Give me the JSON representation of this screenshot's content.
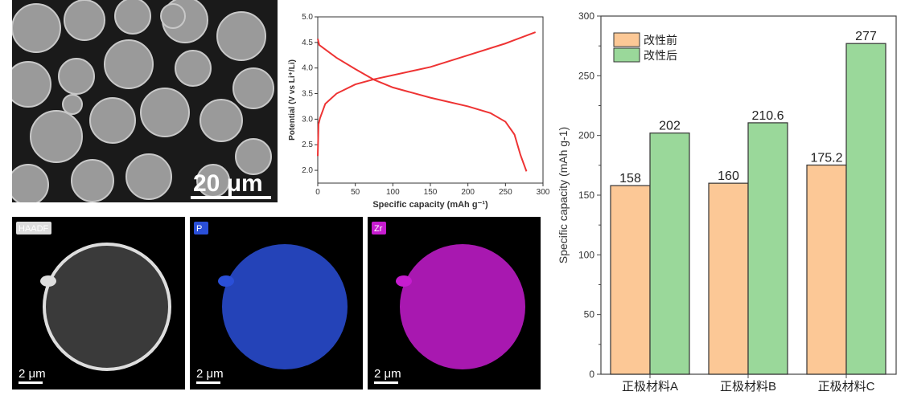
{
  "sem": {
    "scale_label": "20 μm"
  },
  "eds": [
    {
      "label": "HAADF",
      "scale_label": "2 μm",
      "color": "#d8d8d8"
    },
    {
      "label": "P",
      "scale_label": "2 μm",
      "color": "#2a4fd8"
    },
    {
      "label": "Zr",
      "scale_label": "2 μm",
      "color": "#c61ccf"
    }
  ],
  "chart_data": [
    {
      "type": "line",
      "xlabel": "Specific capacity (mAh g⁻¹)",
      "ylabel": "Potential (V vs Li⁺/Li)",
      "xlim": [
        0,
        300
      ],
      "ylim": [
        1.75,
        5.0
      ],
      "xticks": [
        0,
        50,
        100,
        150,
        200,
        250,
        300
      ],
      "yticks": [
        2.0,
        2.5,
        3.0,
        3.5,
        4.0,
        4.5,
        5.0
      ],
      "color": "#ee3333",
      "series": [
        {
          "x": [
            0,
            1,
            3,
            10,
            25,
            50,
            75,
            100,
            150,
            200,
            250,
            290
          ],
          "y": [
            2.28,
            2.9,
            3.02,
            3.3,
            3.5,
            3.68,
            3.78,
            3.86,
            4.02,
            4.25,
            4.48,
            4.7
          ]
        },
        {
          "x": [
            0,
            2,
            25,
            50,
            75,
            100,
            150,
            200,
            230,
            250,
            262,
            270,
            278
          ],
          "y": [
            4.57,
            4.45,
            4.2,
            3.98,
            3.77,
            3.62,
            3.42,
            3.25,
            3.12,
            2.95,
            2.7,
            2.3,
            1.98
          ]
        }
      ]
    },
    {
      "type": "bar",
      "ylabel": "Specific capacity (mAh g-1)",
      "ylim": [
        0,
        300
      ],
      "yticks": [
        0,
        50,
        100,
        150,
        200,
        250,
        300
      ],
      "categories": [
        "正极材料A",
        "正极材料B",
        "正极材料C"
      ],
      "legend_position": "top-left",
      "series": [
        {
          "name": "改性前",
          "values": [
            158,
            160,
            175.2
          ],
          "labels": [
            "158",
            "160",
            "175.2"
          ],
          "color": "#fcc896"
        },
        {
          "name": "改性后",
          "values": [
            202,
            210.6,
            277
          ],
          "labels": [
            "202",
            "210.6",
            "277"
          ],
          "color": "#9ad89a"
        }
      ]
    }
  ]
}
